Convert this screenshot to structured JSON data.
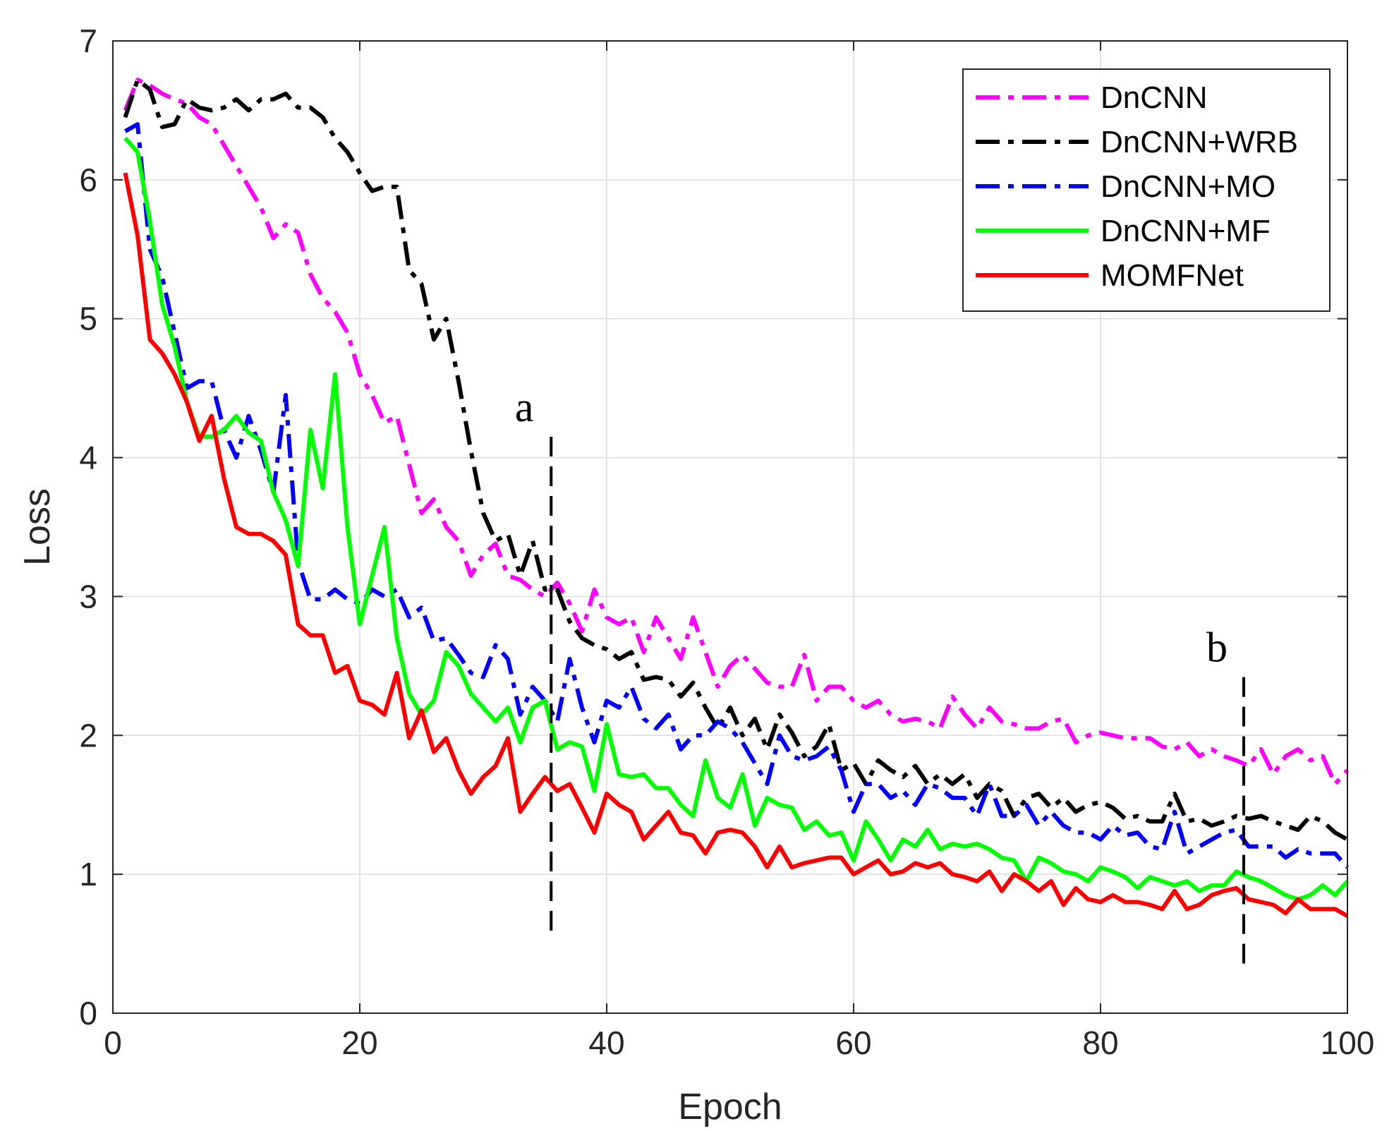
{
  "chart_data": {
    "type": "line",
    "title": "",
    "xlabel": "Epoch",
    "ylabel": "Loss",
    "xlim": [
      0,
      100
    ],
    "ylim": [
      0,
      7
    ],
    "xticks": [
      "0",
      "20",
      "40",
      "60",
      "80",
      "100"
    ],
    "yticks": [
      "0",
      "1",
      "2",
      "3",
      "4",
      "5",
      "6",
      "7"
    ],
    "grid": true,
    "legend_position": "top-right",
    "x": [
      1,
      2,
      3,
      4,
      5,
      6,
      7,
      8,
      9,
      10,
      11,
      12,
      13,
      14,
      15,
      16,
      17,
      18,
      19,
      20,
      21,
      22,
      23,
      24,
      25,
      26,
      27,
      28,
      29,
      30,
      31,
      32,
      33,
      34,
      35,
      36,
      37,
      38,
      39,
      40,
      41,
      42,
      43,
      44,
      45,
      46,
      47,
      48,
      49,
      50,
      51,
      52,
      53,
      54,
      55,
      56,
      57,
      58,
      59,
      60,
      61,
      62,
      63,
      64,
      65,
      66,
      67,
      68,
      69,
      70,
      71,
      72,
      73,
      74,
      75,
      76,
      77,
      78,
      79,
      80,
      81,
      82,
      83,
      84,
      85,
      86,
      87,
      88,
      89,
      90,
      91,
      92,
      93,
      94,
      95,
      96,
      97,
      98,
      99,
      100
    ],
    "series": [
      {
        "name": "DnCNN",
        "color": "#ff00ff",
        "style": "dash-dot",
        "values": [
          6.5,
          6.72,
          6.68,
          6.62,
          6.58,
          6.55,
          6.45,
          6.4,
          6.25,
          6.1,
          5.95,
          5.8,
          5.58,
          5.68,
          5.62,
          5.32,
          5.15,
          5.05,
          4.9,
          4.6,
          4.45,
          4.25,
          4.3,
          3.95,
          3.6,
          3.7,
          3.5,
          3.4,
          3.15,
          3.3,
          3.38,
          3.15,
          3.12,
          3.05,
          3.0,
          3.1,
          2.95,
          2.75,
          3.05,
          2.85,
          2.8,
          2.85,
          2.6,
          2.85,
          2.7,
          2.55,
          2.85,
          2.6,
          2.35,
          2.5,
          2.58,
          2.48,
          2.38,
          2.35,
          2.35,
          2.58,
          2.25,
          2.35,
          2.35,
          2.25,
          2.2,
          2.25,
          2.15,
          2.1,
          2.12,
          2.1,
          2.05,
          2.28,
          2.15,
          2.05,
          2.2,
          2.1,
          2.08,
          2.05,
          2.05,
          2.1,
          2.12,
          1.95,
          2.0,
          2.02,
          2.0,
          1.98,
          1.98,
          1.98,
          1.92,
          1.9,
          1.95,
          1.85,
          1.9,
          1.85,
          1.82,
          1.78,
          1.9,
          1.72,
          1.85,
          1.9,
          1.82,
          1.85,
          1.65,
          1.75
        ]
      },
      {
        "name": "DnCNN+WRB",
        "color": "#000000",
        "style": "dash-dot",
        "values": [
          6.45,
          6.72,
          6.65,
          6.38,
          6.4,
          6.58,
          6.52,
          6.5,
          6.52,
          6.58,
          6.5,
          6.58,
          6.58,
          6.62,
          6.52,
          6.52,
          6.45,
          6.3,
          6.2,
          6.05,
          5.92,
          5.95,
          5.95,
          5.35,
          5.25,
          4.85,
          5.0,
          4.55,
          4.05,
          3.6,
          3.4,
          3.45,
          3.15,
          3.4,
          3.05,
          3.05,
          2.82,
          2.7,
          2.65,
          2.62,
          2.55,
          2.6,
          2.4,
          2.42,
          2.4,
          2.28,
          2.38,
          2.2,
          2.05,
          2.2,
          2.0,
          2.12,
          1.9,
          2.15,
          2.02,
          1.85,
          1.92,
          2.08,
          1.75,
          1.8,
          1.65,
          1.82,
          1.75,
          1.7,
          1.78,
          1.65,
          1.72,
          1.65,
          1.72,
          1.55,
          1.65,
          1.6,
          1.42,
          1.55,
          1.58,
          1.48,
          1.55,
          1.45,
          1.5,
          1.52,
          1.48,
          1.4,
          1.42,
          1.38,
          1.38,
          1.58,
          1.38,
          1.4,
          1.35,
          1.38,
          1.42,
          1.4,
          1.42,
          1.38,
          1.35,
          1.32,
          1.42,
          1.38,
          1.3,
          1.25
        ]
      },
      {
        "name": "DnCNN+MO",
        "color": "#0000ff",
        "style": "dash-dot",
        "values": [
          6.35,
          6.4,
          5.5,
          5.3,
          4.9,
          4.5,
          4.55,
          4.55,
          4.2,
          4.0,
          4.3,
          4.05,
          3.75,
          4.45,
          3.25,
          2.98,
          2.98,
          3.05,
          2.98,
          2.95,
          3.05,
          3.0,
          3.05,
          2.85,
          2.92,
          2.68,
          2.7,
          2.58,
          2.45,
          2.42,
          2.65,
          2.55,
          2.15,
          2.35,
          2.25,
          2.1,
          2.55,
          2.2,
          1.95,
          2.25,
          2.2,
          2.35,
          2.12,
          2.05,
          2.15,
          1.9,
          2.0,
          2.0,
          2.1,
          2.05,
          1.95,
          1.8,
          1.65,
          2.0,
          1.85,
          1.82,
          1.85,
          1.92,
          1.75,
          1.45,
          1.65,
          1.65,
          1.55,
          1.6,
          1.5,
          1.65,
          1.62,
          1.55,
          1.55,
          1.42,
          1.65,
          1.42,
          1.42,
          1.5,
          1.35,
          1.45,
          1.35,
          1.3,
          1.3,
          1.25,
          1.35,
          1.28,
          1.3,
          1.2,
          1.18,
          1.45,
          1.15,
          1.2,
          1.25,
          1.3,
          1.32,
          1.2,
          1.2,
          1.2,
          1.12,
          1.18,
          1.15,
          1.15,
          1.15,
          1.05
        ]
      },
      {
        "name": "DnCNN+MF",
        "color": "#00ff00",
        "style": "solid",
        "values": [
          6.3,
          6.2,
          5.7,
          5.1,
          4.8,
          4.4,
          4.15,
          4.15,
          4.2,
          4.3,
          4.18,
          4.12,
          3.75,
          3.55,
          3.22,
          4.2,
          3.78,
          4.6,
          3.5,
          2.8,
          3.15,
          3.5,
          2.7,
          2.3,
          2.15,
          2.25,
          2.6,
          2.5,
          2.3,
          2.2,
          2.1,
          2.2,
          1.95,
          2.2,
          2.25,
          1.9,
          1.95,
          1.92,
          1.6,
          2.08,
          1.72,
          1.7,
          1.72,
          1.62,
          1.62,
          1.5,
          1.42,
          1.82,
          1.55,
          1.48,
          1.72,
          1.35,
          1.55,
          1.5,
          1.48,
          1.32,
          1.38,
          1.28,
          1.3,
          1.1,
          1.38,
          1.25,
          1.1,
          1.25,
          1.2,
          1.32,
          1.18,
          1.22,
          1.2,
          1.22,
          1.18,
          1.12,
          1.1,
          0.95,
          1.12,
          1.08,
          1.02,
          1.0,
          0.95,
          1.05,
          1.02,
          0.98,
          0.9,
          0.98,
          0.95,
          0.92,
          0.95,
          0.88,
          0.92,
          0.92,
          1.02,
          0.98,
          0.95,
          0.9,
          0.85,
          0.82,
          0.85,
          0.92,
          0.85,
          0.95
        ]
      },
      {
        "name": "MOMFNet",
        "color": "#ff0000",
        "style": "solid",
        "values": [
          6.05,
          5.6,
          4.85,
          4.75,
          4.6,
          4.4,
          4.12,
          4.3,
          3.85,
          3.5,
          3.45,
          3.45,
          3.4,
          3.3,
          2.8,
          2.72,
          2.72,
          2.45,
          2.5,
          2.25,
          2.22,
          2.15,
          2.45,
          1.98,
          2.18,
          1.88,
          1.98,
          1.75,
          1.58,
          1.7,
          1.78,
          1.98,
          1.45,
          1.58,
          1.7,
          1.6,
          1.65,
          1.48,
          1.3,
          1.58,
          1.5,
          1.45,
          1.25,
          1.35,
          1.45,
          1.3,
          1.28,
          1.15,
          1.3,
          1.32,
          1.3,
          1.2,
          1.05,
          1.2,
          1.05,
          1.08,
          1.1,
          1.12,
          1.12,
          1.0,
          1.05,
          1.1,
          1.0,
          1.02,
          1.08,
          1.05,
          1.08,
          1.0,
          0.98,
          0.95,
          1.02,
          0.88,
          1.0,
          0.95,
          0.88,
          0.95,
          0.78,
          0.9,
          0.82,
          0.8,
          0.85,
          0.8,
          0.8,
          0.78,
          0.75,
          0.88,
          0.75,
          0.78,
          0.85,
          0.88,
          0.9,
          0.82,
          0.8,
          0.78,
          0.72,
          0.82,
          0.75,
          0.75,
          0.75,
          0.7
        ]
      }
    ],
    "annotations": [
      {
        "text": "a",
        "x": 35.5,
        "line_from": 0.55,
        "line_to": 4.15
      },
      {
        "text": "b",
        "x": 91.6,
        "line_from": 0.3,
        "line_to": 2.42
      }
    ]
  }
}
